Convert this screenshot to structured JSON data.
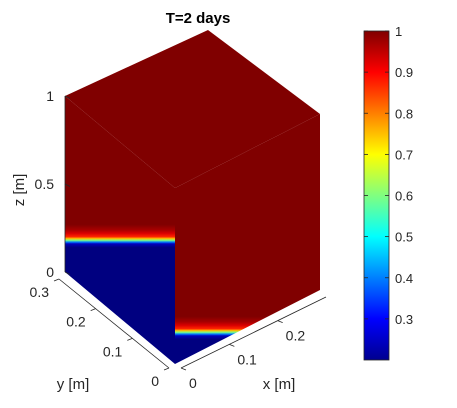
{
  "chart_data": {
    "type": "surface3d",
    "title": "T=2 days",
    "xlabel": "x [m]",
    "ylabel": "y [m]",
    "zlabel": "z [m]",
    "xlim": [
      0,
      0.3
    ],
    "ylim": [
      0,
      0.3
    ],
    "zlim": [
      0,
      1
    ],
    "x_ticks": [
      "0",
      "0.1",
      "0.2"
    ],
    "y_ticks": [
      "0",
      "0.1",
      "0.2",
      "0.3"
    ],
    "z_ticks": [
      "0",
      "0.5",
      "1"
    ],
    "colorbar": {
      "colormap": "jet",
      "range": [
        0.2,
        1
      ],
      "ticks": [
        "0.3",
        "0.4",
        "0.5",
        "0.6",
        "0.7",
        "0.8",
        "0.9",
        "1"
      ]
    },
    "front_profile": {
      "z": [
        0,
        0.14,
        0.16,
        0.17,
        0.18,
        0.19,
        0.2,
        0.22,
        0.24,
        0.27,
        1
      ],
      "value": [
        0.2,
        0.2,
        0.25,
        0.4,
        0.6,
        0.75,
        0.87,
        0.93,
        0.97,
        1,
        1
      ]
    }
  }
}
